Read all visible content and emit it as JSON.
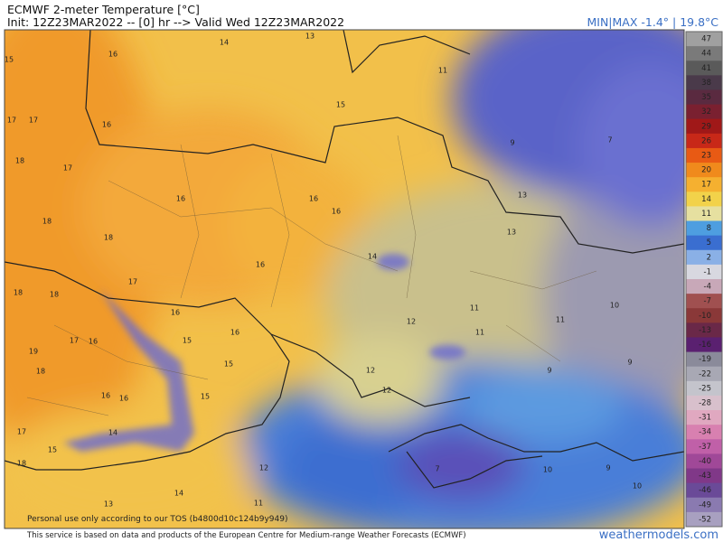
{
  "header": {
    "title": "ECMWF 2-meter Temperature [°C]",
    "init": "Init: 12Z23MAR2022 -- [0] hr --> Valid Wed 12Z23MAR2022",
    "minmax": "MIN|MAX -1.4° | 19.8°C"
  },
  "map": {
    "temperature_labels": [
      15,
      16,
      14,
      13,
      11,
      15,
      16,
      17,
      17,
      18,
      17,
      9,
      7,
      18,
      18,
      16,
      16,
      16,
      13,
      13,
      14,
      16,
      17,
      18,
      18,
      16,
      11,
      11,
      10,
      12,
      11,
      17,
      16,
      15,
      16,
      19,
      15,
      18,
      9,
      9,
      12,
      15,
      16,
      16,
      12,
      17,
      14,
      15,
      18,
      12,
      7,
      10,
      9,
      10,
      14,
      13,
      11
    ],
    "watermark": "Personal use only according to our TOS (b4800d10c124b9y949)"
  },
  "colorbar": {
    "labels": [
      47,
      44,
      41,
      38,
      35,
      32,
      29,
      26,
      23,
      20,
      17,
      14,
      11,
      8,
      5,
      2,
      -1,
      -4,
      -7,
      -10,
      -13,
      -16,
      -19,
      -22,
      -25,
      -28,
      -31,
      -34,
      -37,
      -40,
      -43,
      -46,
      -49,
      -52
    ],
    "colors": [
      "#a0a0a0",
      "#7a7a7a",
      "#5a5a5a",
      "#4a3a4a",
      "#5a2a40",
      "#7a2030",
      "#a01818",
      "#c82818",
      "#e85a14",
      "#f08a1c",
      "#f5b030",
      "#f2d24a",
      "#e6e0a0",
      "#4e9ee0",
      "#3a6ed0",
      "#8ab0e6",
      "#d8d8e0",
      "#c8a8b8",
      "#a05050",
      "#8a3838",
      "#6a2848",
      "#5a2070",
      "#8a8a9a",
      "#a8a8b4",
      "#c4c4cc",
      "#d8c0cc",
      "#e0a8c0",
      "#d880b0",
      "#c060a8",
      "#a04898",
      "#803888",
      "#6a4a98",
      "#8a7ab0",
      "#a8a0c0"
    ]
  },
  "footer": {
    "credit": "This service is based on data and products of the European Centre for Medium-range Weather Forecasts (ECMWF)",
    "site": "weathermodels.com"
  }
}
